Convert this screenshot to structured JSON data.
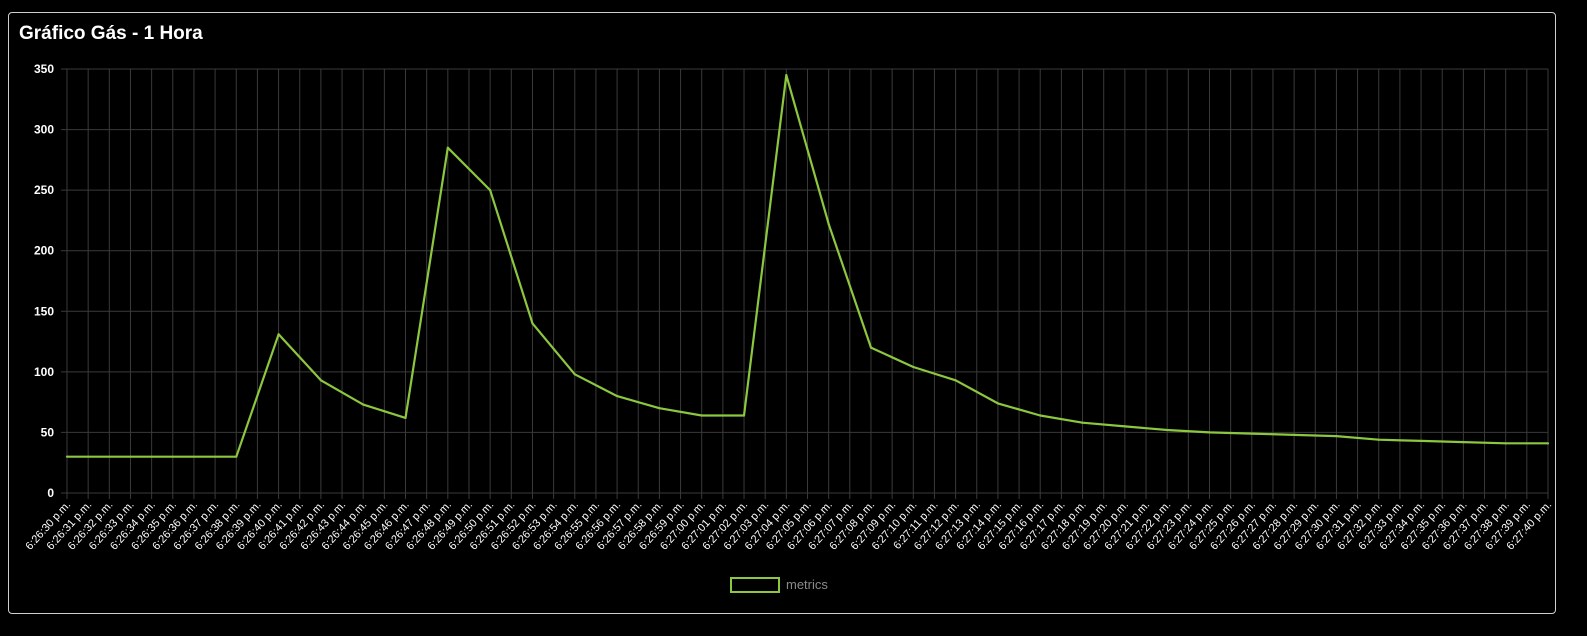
{
  "card": {
    "title": "Gráfico Gás - 1 Hora"
  },
  "colors": {
    "background": "#000000",
    "grid": "#3a3a3a",
    "series": "#8dc63f",
    "text": "#ffffff",
    "legend_text": "#8a8a8a"
  },
  "chart_data": {
    "type": "line",
    "title": "",
    "xlabel": "",
    "ylabel": "",
    "ylim": [
      0,
      350
    ],
    "yticks": [
      0,
      50,
      100,
      150,
      200,
      250,
      300,
      350
    ],
    "grid": true,
    "legend_position": "bottom",
    "x": [
      "6:26:30 p.m.",
      "6:26:31 p.m.",
      "6:26:32 p.m.",
      "6:26:33 p.m.",
      "6:26:34 p.m.",
      "6:26:35 p.m.",
      "6:26:36 p.m.",
      "6:26:37 p.m.",
      "6:26:38 p.m.",
      "6:26:39 p.m.",
      "6:26:40 p.m.",
      "6:26:41 p.m.",
      "6:26:42 p.m.",
      "6:26:43 p.m.",
      "6:26:44 p.m.",
      "6:26:45 p.m.",
      "6:26:46 p.m.",
      "6:26:47 p.m.",
      "6:26:48 p.m.",
      "6:26:49 p.m.",
      "6:26:50 p.m.",
      "6:26:51 p.m.",
      "6:26:52 p.m.",
      "6:26:53 p.m.",
      "6:26:54 p.m.",
      "6:26:55 p.m.",
      "6:26:56 p.m.",
      "6:26:57 p.m.",
      "6:26:58 p.m.",
      "6:26:59 p.m.",
      "6:27:00 p.m.",
      "6:27:01 p.m.",
      "6:27:02 p.m.",
      "6:27:03 p.m.",
      "6:27:04 p.m.",
      "6:27:05 p.m.",
      "6:27:06 p.m.",
      "6:27:07 p.m.",
      "6:27:08 p.m.",
      "6:27:09 p.m.",
      "6:27:10 p.m.",
      "6:27:11 p.m.",
      "6:27:12 p.m.",
      "6:27:13 p.m.",
      "6:27:14 p.m.",
      "6:27:15 p.m.",
      "6:27:16 p.m.",
      "6:27:17 p.m.",
      "6:27:18 p.m.",
      "6:27:19 p.m.",
      "6:27:20 p.m.",
      "6:27:21 p.m.",
      "6:27:22 p.m.",
      "6:27:23 p.m.",
      "6:27:24 p.m.",
      "6:27:25 p.m.",
      "6:27:26 p.m.",
      "6:27:27 p.m.",
      "6:27:28 p.m.",
      "6:27:29 p.m.",
      "6:27:30 p.m.",
      "6:27:31 p.m.",
      "6:27:32 p.m.",
      "6:27:33 p.m.",
      "6:27:34 p.m.",
      "6:27:35 p.m.",
      "6:27:36 p.m.",
      "6:27:37 p.m.",
      "6:27:38 p.m.",
      "6:27:39 p.m.",
      "6:27:40 p.m."
    ],
    "series": [
      {
        "name": "metrics",
        "points": [
          {
            "x": "6:26:30 p.m.",
            "y": 30
          },
          {
            "x": "6:26:38 p.m.",
            "y": 30
          },
          {
            "x": "6:26:40 p.m.",
            "y": 131
          },
          {
            "x": "6:26:42 p.m.",
            "y": 93
          },
          {
            "x": "6:26:44 p.m.",
            "y": 73
          },
          {
            "x": "6:26:46 p.m.",
            "y": 62
          },
          {
            "x": "6:26:48 p.m.",
            "y": 285
          },
          {
            "x": "6:26:50 p.m.",
            "y": 250
          },
          {
            "x": "6:26:52 p.m.",
            "y": 140
          },
          {
            "x": "6:26:54 p.m.",
            "y": 98
          },
          {
            "x": "6:26:56 p.m.",
            "y": 80
          },
          {
            "x": "6:26:58 p.m.",
            "y": 70
          },
          {
            "x": "6:27:00 p.m.",
            "y": 64
          },
          {
            "x": "6:27:02 p.m.",
            "y": 64
          },
          {
            "x": "6:27:04 p.m.",
            "y": 345
          },
          {
            "x": "6:27:06 p.m.",
            "y": 222
          },
          {
            "x": "6:27:08 p.m.",
            "y": 120
          },
          {
            "x": "6:27:10 p.m.",
            "y": 104
          },
          {
            "x": "6:27:12 p.m.",
            "y": 93
          },
          {
            "x": "6:27:14 p.m.",
            "y": 74
          },
          {
            "x": "6:27:16 p.m.",
            "y": 64
          },
          {
            "x": "6:27:18 p.m.",
            "y": 58
          },
          {
            "x": "6:27:20 p.m.",
            "y": 55
          },
          {
            "x": "6:27:22 p.m.",
            "y": 52
          },
          {
            "x": "6:27:24 p.m.",
            "y": 50
          },
          {
            "x": "6:27:26 p.m.",
            "y": 49
          },
          {
            "x": "6:27:28 p.m.",
            "y": 48
          },
          {
            "x": "6:27:30 p.m.",
            "y": 47
          },
          {
            "x": "6:27:32 p.m.",
            "y": 44
          },
          {
            "x": "6:27:34 p.m.",
            "y": 43
          },
          {
            "x": "6:27:36 p.m.",
            "y": 42
          },
          {
            "x": "6:27:38 p.m.",
            "y": 41
          },
          {
            "x": "6:27:40 p.m.",
            "y": 41
          }
        ]
      }
    ]
  }
}
